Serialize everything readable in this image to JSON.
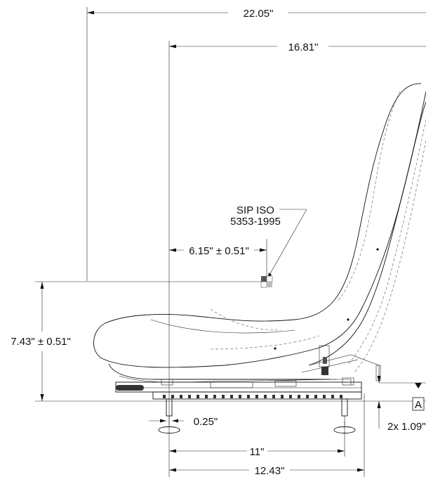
{
  "dimensions": {
    "overall_width": "22.05\"",
    "back_to_front": "16.81\"",
    "sip_offset": "6.15\" ± 0.51\"",
    "sip_height": "7.43\" ± 0.51\"",
    "rail_width": "0.25\"",
    "mount_spacing": "11\"",
    "base_length": "12.43\"",
    "foot_height": "2x 1.09\""
  },
  "labels": {
    "sip_line1": "SIP ISO",
    "sip_line2": "5353-1995",
    "datum": "A"
  },
  "colors": {
    "line": "#111111",
    "sip_marker_dark": "#555555",
    "sip_marker_light": "#bbbbbb"
  }
}
